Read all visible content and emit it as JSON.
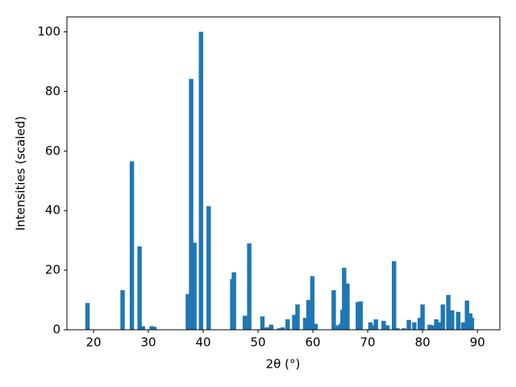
{
  "chart_data": {
    "type": "bar",
    "x_label": "2θ (°)",
    "y_label": "Intensities (scaled)",
    "color": "#1f77b4",
    "x": [
      18.9,
      25.3,
      27.0,
      28.4,
      29.0,
      30.6,
      31.1,
      37.2,
      37.8,
      38.4,
      39.6,
      41.0,
      45.3,
      45.6,
      47.6,
      48.4,
      50.8,
      51.6,
      52.4,
      53.9,
      54.5,
      55.4,
      56.6,
      57.2,
      58.6,
      59.2,
      59.9,
      60.5,
      63.8,
      64.6,
      65.1,
      65.4,
      65.7,
      66.3,
      68.2,
      68.7,
      70.5,
      71.2,
      71.5,
      72.9,
      73.6,
      74.8,
      75.4,
      76.6,
      77.5,
      78.5,
      79.5,
      80.0,
      81.3,
      81.7,
      82.5,
      83.0,
      83.7,
      84.7,
      85.4,
      86.5,
      87.4,
      88.1,
      88.7,
      89.0
    ],
    "values": [
      9,
      13.3,
      56.5,
      28,
      1.2,
      1.2,
      1,
      12,
      84.2,
      29.2,
      100,
      41.5,
      17,
      19.3,
      4.7,
      29,
      4.5,
      0.8,
      1.7,
      0.5,
      0.8,
      3.5,
      5,
      8.5,
      4,
      10,
      18,
      2,
      13.3,
      1.5,
      2,
      6.7,
      20.8,
      15.5,
      9.3,
      9.5,
      2.5,
      1.5,
      3.5,
      3,
      1.5,
      23,
      0.5,
      0.5,
      3.3,
      2.5,
      4,
      8.5,
      1.7,
      1.5,
      3.5,
      2.5,
      8.5,
      11.7,
      6.5,
      6,
      2.5,
      9.8,
      5.5,
      4
    ],
    "xlim": [
      15.15,
      94.1
    ],
    "ylim": [
      0,
      105
    ],
    "xticks": [
      20,
      30,
      40,
      50,
      60,
      70,
      80,
      90
    ],
    "yticks": [
      0,
      20,
      40,
      60,
      80,
      100
    ]
  }
}
